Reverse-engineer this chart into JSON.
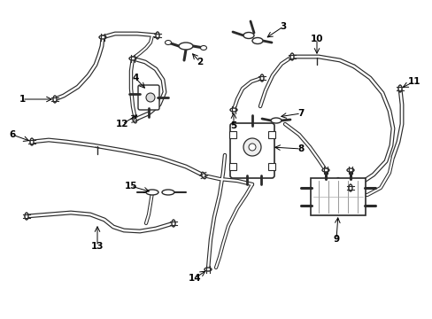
{
  "background_color": "#ffffff",
  "line_color": "#2a2a2a",
  "label_color": "#000000",
  "figsize": [
    4.89,
    3.6
  ],
  "dpi": 100,
  "lw": 1.2,
  "lw_thick": 2.0
}
